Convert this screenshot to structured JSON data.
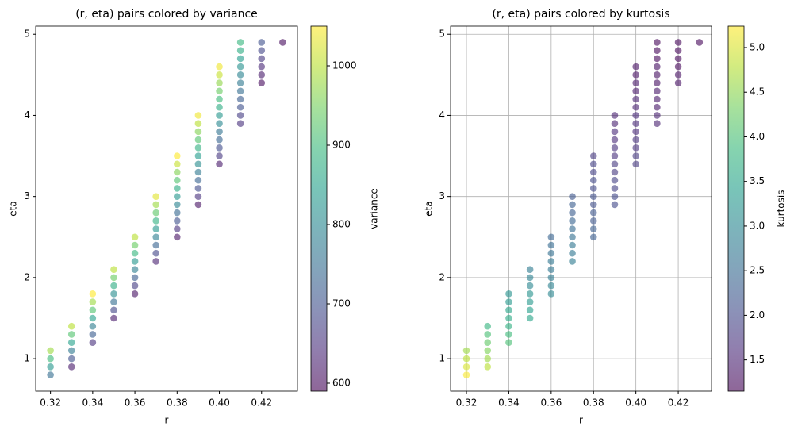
{
  "chart_data": [
    {
      "type": "scatter",
      "title": "(r, eta) pairs colored by variance",
      "x_label": "r",
      "y_label": "eta",
      "colorbar_label": "variance",
      "grid": false,
      "colormap": "viridis",
      "alpha": 0.6,
      "xlim": [
        0.313,
        0.437
      ],
      "ylim": [
        0.6,
        5.1
      ],
      "clim": [
        590,
        1050
      ],
      "xticks": [
        0.32,
        0.34,
        0.36,
        0.38,
        {
          "value": 0.4,
          "label": "0.40"
        },
        0.42
      ],
      "yticks": [
        1,
        2,
        3,
        4,
        5
      ],
      "cticks": [
        600,
        700,
        800,
        900,
        1000
      ],
      "x": [
        0.32,
        0.32,
        0.32,
        0.32,
        0.33,
        0.33,
        0.33,
        0.33,
        0.33,
        0.33,
        0.34,
        0.34,
        0.34,
        0.34,
        0.34,
        0.34,
        0.34,
        0.35,
        0.35,
        0.35,
        0.35,
        0.35,
        0.35,
        0.35,
        0.36,
        0.36,
        0.36,
        0.36,
        0.36,
        0.36,
        0.36,
        0.36,
        0.37,
        0.37,
        0.37,
        0.37,
        0.37,
        0.37,
        0.37,
        0.37,
        0.37,
        0.38,
        0.38,
        0.38,
        0.38,
        0.38,
        0.38,
        0.38,
        0.38,
        0.38,
        0.38,
        0.38,
        0.39,
        0.39,
        0.39,
        0.39,
        0.39,
        0.39,
        0.39,
        0.39,
        0.39,
        0.39,
        0.39,
        0.39,
        0.4,
        0.4,
        0.4,
        0.4,
        0.4,
        0.4,
        0.4,
        0.4,
        0.4,
        0.4,
        0.4,
        0.4,
        0.4,
        0.41,
        0.41,
        0.41,
        0.41,
        0.41,
        0.41,
        0.41,
        0.41,
        0.41,
        0.41,
        0.41,
        0.42,
        0.42,
        0.42,
        0.42,
        0.42,
        0.42,
        0.43
      ],
      "values": [
        0.8,
        0.9,
        1.0,
        1.1,
        0.9,
        1.0,
        1.1,
        1.2,
        1.3,
        1.4,
        1.2,
        1.3,
        1.4,
        1.5,
        1.6,
        1.7,
        1.8,
        1.5,
        1.6,
        1.7,
        1.8,
        1.9,
        2.0,
        2.1,
        1.8,
        1.9,
        2.0,
        2.1,
        2.2,
        2.3,
        2.4,
        2.5,
        2.2,
        2.3,
        2.4,
        2.5,
        2.6,
        2.7,
        2.8,
        2.9,
        3.0,
        2.5,
        2.6,
        2.7,
        2.8,
        2.9,
        3.0,
        3.1,
        3.2,
        3.3,
        3.4,
        3.5,
        2.9,
        3.0,
        3.1,
        3.2,
        3.3,
        3.4,
        3.5,
        3.6,
        3.7,
        3.8,
        3.9,
        4.0,
        3.4,
        3.5,
        3.6,
        3.7,
        3.8,
        3.9,
        4.0,
        4.1,
        4.2,
        4.3,
        4.4,
        4.5,
        4.6,
        3.9,
        4.0,
        4.1,
        4.2,
        4.3,
        4.4,
        4.5,
        4.6,
        4.7,
        4.8,
        4.9,
        4.4,
        4.5,
        4.6,
        4.7,
        4.8,
        4.9,
        4.9
      ],
      "color_values": [
        750,
        830,
        900,
        980,
        620,
        700,
        770,
        850,
        920,
        1000,
        650,
        720,
        780,
        850,
        920,
        980,
        1050,
        620,
        680,
        750,
        810,
        870,
        940,
        1000,
        610,
        670,
        720,
        780,
        830,
        890,
        940,
        1000,
        630,
        680,
        730,
        780,
        830,
        880,
        930,
        980,
        1030,
        610,
        650,
        700,
        740,
        790,
        830,
        870,
        920,
        960,
        1010,
        1050,
        610,
        650,
        690,
        730,
        770,
        810,
        840,
        880,
        920,
        960,
        1000,
        1040,
        620,
        660,
        690,
        730,
        760,
        800,
        830,
        870,
        900,
        940,
        970,
        1010,
        1040,
        650,
        670,
        700,
        720,
        750,
        770,
        790,
        820,
        840,
        870,
        890,
        600,
        620,
        640,
        660,
        680,
        700,
        600
      ]
    },
    {
      "type": "scatter",
      "title": "(r, eta) pairs colored by kurtosis",
      "x_label": "r",
      "y_label": "eta",
      "colorbar_label": "kurtosis",
      "grid": true,
      "colormap": "viridis",
      "alpha": 0.6,
      "xlim": [
        0.3125,
        0.4357
      ],
      "ylim": [
        0.6,
        5.1
      ],
      "clim": [
        1.15,
        5.24
      ],
      "xticks": [
        0.32,
        0.34,
        0.36,
        0.38,
        {
          "value": 0.4,
          "label": "0.40"
        },
        0.42
      ],
      "yticks": [
        1,
        2,
        3,
        4,
        5
      ],
      "cticks": [
        1.5,
        {
          "value": 2,
          "label": "2.0"
        },
        2.5,
        {
          "value": 3,
          "label": "3.0"
        },
        3.5,
        {
          "value": 4,
          "label": "4.0"
        },
        4.5,
        {
          "value": 5,
          "label": "5.0"
        }
      ],
      "x": [
        0.32,
        0.32,
        0.32,
        0.32,
        0.33,
        0.33,
        0.33,
        0.33,
        0.33,
        0.33,
        0.34,
        0.34,
        0.34,
        0.34,
        0.34,
        0.34,
        0.34,
        0.35,
        0.35,
        0.35,
        0.35,
        0.35,
        0.35,
        0.35,
        0.36,
        0.36,
        0.36,
        0.36,
        0.36,
        0.36,
        0.36,
        0.36,
        0.37,
        0.37,
        0.37,
        0.37,
        0.37,
        0.37,
        0.37,
        0.37,
        0.37,
        0.38,
        0.38,
        0.38,
        0.38,
        0.38,
        0.38,
        0.38,
        0.38,
        0.38,
        0.38,
        0.38,
        0.39,
        0.39,
        0.39,
        0.39,
        0.39,
        0.39,
        0.39,
        0.39,
        0.39,
        0.39,
        0.39,
        0.39,
        0.4,
        0.4,
        0.4,
        0.4,
        0.4,
        0.4,
        0.4,
        0.4,
        0.4,
        0.4,
        0.4,
        0.4,
        0.4,
        0.41,
        0.41,
        0.41,
        0.41,
        0.41,
        0.41,
        0.41,
        0.41,
        0.41,
        0.41,
        0.41,
        0.42,
        0.42,
        0.42,
        0.42,
        0.42,
        0.42,
        0.43
      ],
      "values": [
        0.8,
        0.9,
        1.0,
        1.1,
        0.9,
        1.0,
        1.1,
        1.2,
        1.3,
        1.4,
        1.2,
        1.3,
        1.4,
        1.5,
        1.6,
        1.7,
        1.8,
        1.5,
        1.6,
        1.7,
        1.8,
        1.9,
        2.0,
        2.1,
        1.8,
        1.9,
        2.0,
        2.1,
        2.2,
        2.3,
        2.4,
        2.5,
        2.2,
        2.3,
        2.4,
        2.5,
        2.6,
        2.7,
        2.8,
        2.9,
        3.0,
        2.5,
        2.6,
        2.7,
        2.8,
        2.9,
        3.0,
        3.1,
        3.2,
        3.3,
        3.4,
        3.5,
        2.9,
        3.0,
        3.1,
        3.2,
        3.3,
        3.4,
        3.5,
        3.6,
        3.7,
        3.8,
        3.9,
        4.0,
        3.4,
        3.5,
        3.6,
        3.7,
        3.8,
        3.9,
        4.0,
        4.1,
        4.2,
        4.3,
        4.4,
        4.5,
        4.6,
        3.9,
        4.0,
        4.1,
        4.2,
        4.3,
        4.4,
        4.5,
        4.6,
        4.7,
        4.8,
        4.9,
        4.4,
        4.5,
        4.6,
        4.7,
        4.8,
        4.9,
        4.9
      ],
      "color_values": [
        5.2,
        5.0,
        4.8,
        4.6,
        4.8,
        4.6,
        4.4,
        4.2,
        4.0,
        3.8,
        4.0,
        3.9,
        3.7,
        3.6,
        3.5,
        3.3,
        3.2,
        3.5,
        3.4,
        3.3,
        3.2,
        3.0,
        2.9,
        2.8,
        3.0,
        2.9,
        2.8,
        2.7,
        2.7,
        2.6,
        2.5,
        2.4,
        2.8,
        2.7,
        2.7,
        2.6,
        2.5,
        2.4,
        2.3,
        2.3,
        2.2,
        2.3,
        2.3,
        2.2,
        2.2,
        2.1,
        2.1,
        2.0,
        2.0,
        1.9,
        1.9,
        1.8,
        2.0,
        2.0,
        1.9,
        1.9,
        1.8,
        1.8,
        1.7,
        1.7,
        1.6,
        1.6,
        1.5,
        1.5,
        1.8,
        1.8,
        1.7,
        1.7,
        1.6,
        1.6,
        1.6,
        1.5,
        1.5,
        1.4,
        1.4,
        1.3,
        1.3,
        1.5,
        1.5,
        1.4,
        1.4,
        1.4,
        1.3,
        1.3,
        1.3,
        1.2,
        1.2,
        1.2,
        1.3,
        1.3,
        1.2,
        1.2,
        1.2,
        1.2,
        1.2
      ]
    }
  ]
}
